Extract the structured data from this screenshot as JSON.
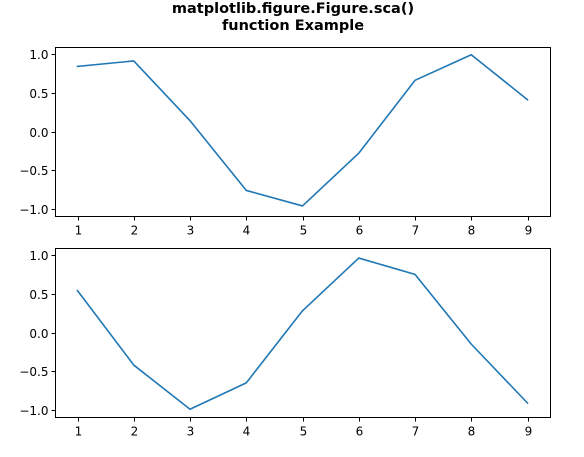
{
  "title_lines": [
    "matplotlib.figure.Figure.sca()",
    "function Example"
  ],
  "colors": {
    "line": "#1f77b4",
    "axes": "#000000",
    "background": "#ffffff"
  },
  "chart_data": [
    {
      "type": "line",
      "x": [
        1,
        2,
        3,
        4,
        5,
        6,
        7,
        8,
        9
      ],
      "series": [
        {
          "values": [
            0.84,
            0.91,
            0.14,
            -0.76,
            -0.96,
            -0.28,
            0.66,
            0.99,
            0.41
          ]
        }
      ],
      "xticks": [
        1,
        2,
        3,
        4,
        5,
        6,
        7,
        8,
        9
      ],
      "xtick_labels": [
        "1",
        "2",
        "3",
        "4",
        "5",
        "6",
        "7",
        "8",
        "9"
      ],
      "yticks": [
        1.0,
        0.5,
        0.0,
        -0.5,
        -1.0
      ],
      "ytick_labels": [
        "1.0",
        "0.5",
        "0.0",
        "−0.5",
        "−1.0"
      ],
      "xlim": [
        0.6,
        9.4
      ],
      "ylim": [
        -1.09,
        1.09
      ],
      "grid": false
    },
    {
      "type": "line",
      "x": [
        1,
        2,
        3,
        4,
        5,
        6,
        7,
        8,
        9
      ],
      "series": [
        {
          "values": [
            0.54,
            -0.42,
            -0.99,
            -0.65,
            0.28,
            0.96,
            0.75,
            -0.15,
            -0.91
          ]
        }
      ],
      "xticks": [
        1,
        2,
        3,
        4,
        5,
        6,
        7,
        8,
        9
      ],
      "xtick_labels": [
        "1",
        "2",
        "3",
        "4",
        "5",
        "6",
        "7",
        "8",
        "9"
      ],
      "yticks": [
        1.0,
        0.5,
        0.0,
        -0.5,
        -1.0
      ],
      "ytick_labels": [
        "1.0",
        "0.5",
        "0.0",
        "−0.5",
        "−1.0"
      ],
      "xlim": [
        0.6,
        9.4
      ],
      "ylim": [
        -1.09,
        1.09
      ],
      "grid": false
    }
  ]
}
